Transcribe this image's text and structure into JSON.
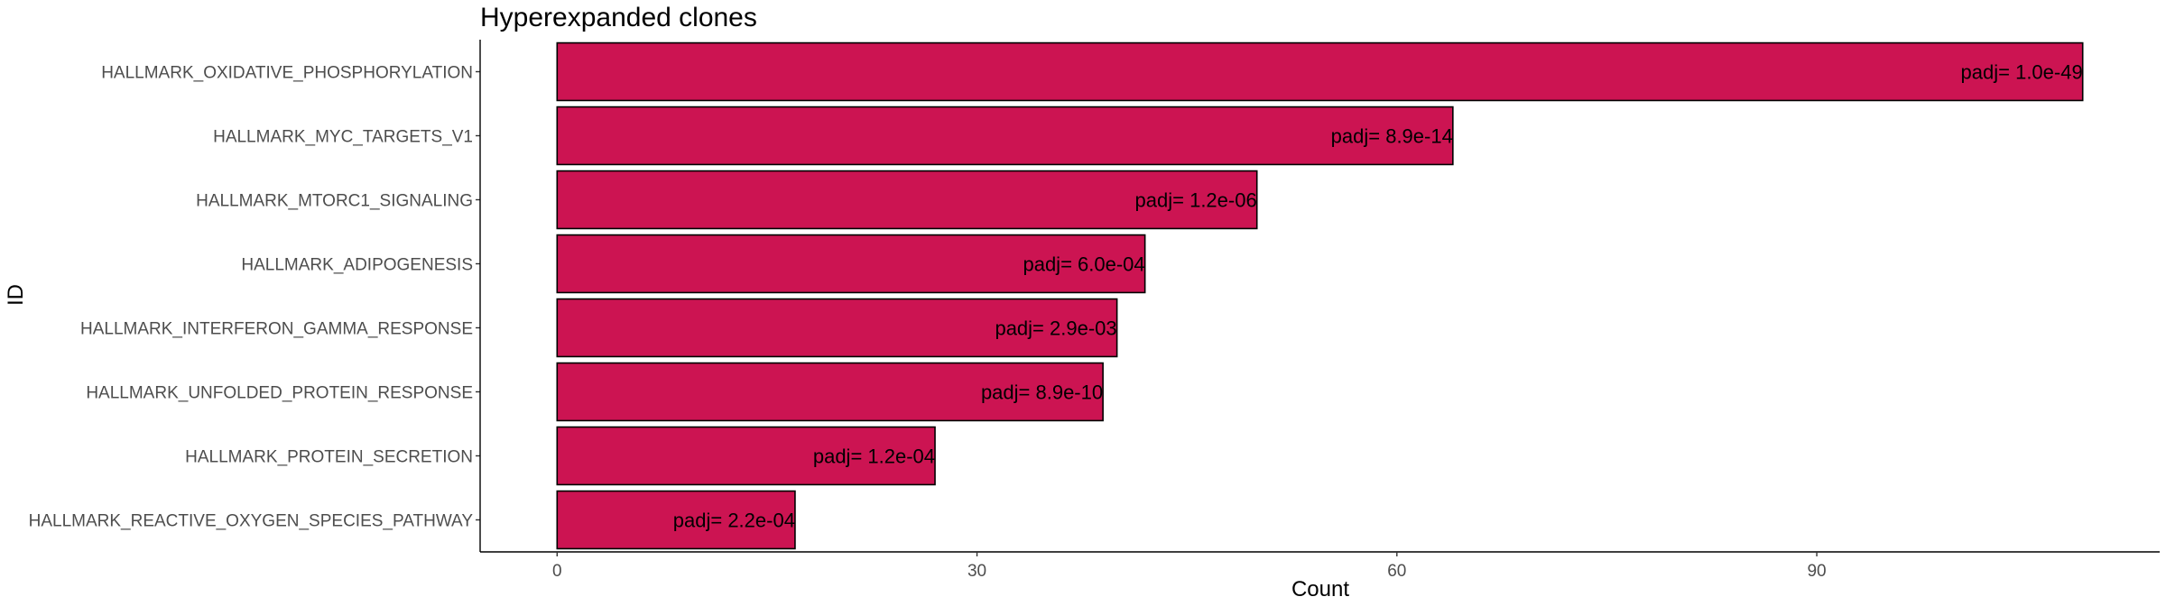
{
  "chart_data": {
    "type": "bar",
    "orientation": "horizontal",
    "title": "Hyperexpanded clones",
    "xlabel": "Count",
    "ylabel": "ID",
    "xlim": [
      -5.5,
      114.5
    ],
    "xticks": [
      0,
      30,
      60,
      90
    ],
    "grid": false,
    "legend": "none",
    "bar_color": "#CC1452",
    "categories": [
      "HALLMARK_OXIDATIVE_PHOSPHORYLATION",
      "HALLMARK_MYC_TARGETS_V1",
      "HALLMARK_MTORC1_SIGNALING",
      "HALLMARK_ADIPOGENESIS",
      "HALLMARK_INTERFERON_GAMMA_RESPONSE",
      "HALLMARK_UNFOLDED_PROTEIN_RESPONSE",
      "HALLMARK_PROTEIN_SECRETION",
      "HALLMARK_REACTIVE_OXYGEN_SPECIES_PATHWAY"
    ],
    "values": [
      109,
      64,
      50,
      42,
      40,
      39,
      27,
      17
    ],
    "labels": [
      "padj= 1.0e-49",
      "padj= 8.9e-14",
      "padj= 1.2e-06",
      "padj= 6.0e-04",
      "padj= 2.9e-03",
      "padj= 8.9e-10",
      "padj= 1.2e-04",
      "padj= 2.2e-04"
    ]
  }
}
